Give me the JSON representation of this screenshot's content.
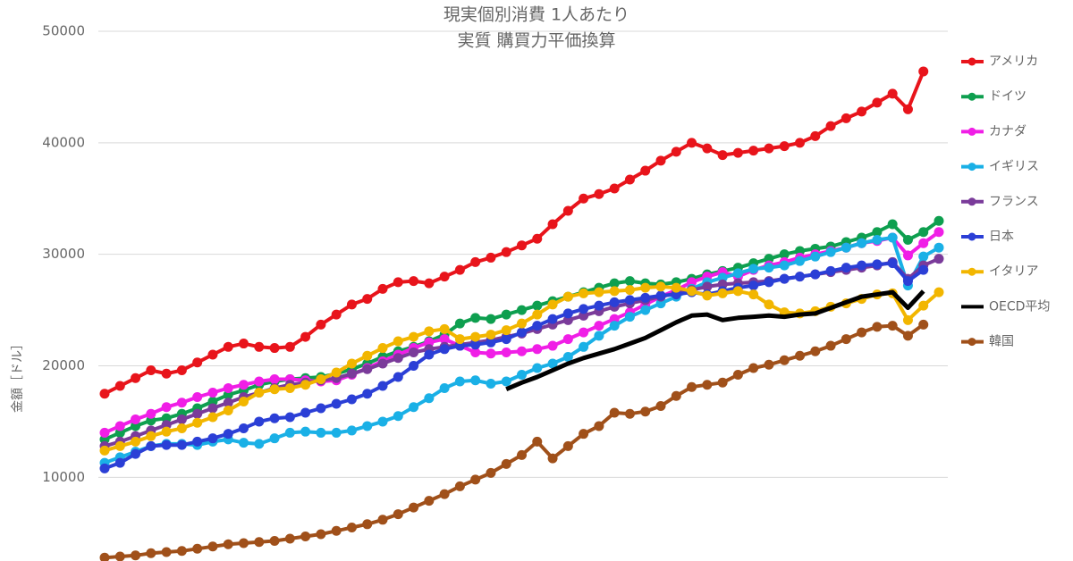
{
  "chart_data": {
    "type": "line",
    "title": [
      "現実個別消費 1人あたり",
      "実質 購買力平価換算"
    ],
    "y_label": "金額［ドル］",
    "categories": [
      null,
      null,
      null,
      null,
      null,
      null,
      null,
      null,
      null,
      null,
      null,
      null,
      null,
      null,
      null,
      null,
      null,
      null,
      null,
      null,
      null,
      null,
      null,
      null,
      null,
      null,
      null,
      null,
      null,
      null,
      null,
      null,
      null,
      null,
      null,
      null,
      null,
      null,
      null,
      null,
      null,
      null,
      null,
      null,
      null,
      null,
      null,
      null,
      null,
      null,
      null,
      null,
      null,
      null,
      null
    ],
    "ylim": [
      2500,
      50000
    ],
    "yticks": [
      10000,
      20000,
      30000,
      40000,
      50000
    ],
    "grid": true,
    "legend": "right",
    "series": [
      {
        "name": "アメリカ",
        "color": "#e8141b",
        "markers": true,
        "values": [
          17500,
          18200,
          18900,
          19600,
          19300,
          19600,
          20300,
          21000,
          21700,
          22000,
          21700,
          21600,
          21700,
          22600,
          23700,
          24600,
          25500,
          26000,
          26900,
          27500,
          27600,
          27400,
          28000,
          28600,
          29300,
          29700,
          30200,
          30800,
          31400,
          32700,
          33900,
          35000,
          35400,
          35900,
          36700,
          37500,
          38400,
          39200,
          40000,
          39500,
          38900,
          39100,
          39300,
          39500,
          39700,
          40000,
          40600,
          41500,
          42200,
          42800,
          43600,
          44400,
          43000,
          46400,
          null
        ]
      },
      {
        "name": "ドイツ",
        "color": "#0e9f4f",
        "markers": true,
        "values": [
          13400,
          14000,
          14600,
          15100,
          15300,
          15700,
          16200,
          16800,
          17400,
          17800,
          18300,
          18600,
          18800,
          18900,
          19000,
          19300,
          19700,
          20200,
          20800,
          21300,
          21700,
          22200,
          22800,
          23800,
          24300,
          24200,
          24600,
          25000,
          25400,
          25800,
          26200,
          26600,
          27000,
          27400,
          27600,
          27400,
          27300,
          27500,
          27800,
          28200,
          28500,
          28800,
          29200,
          29600,
          30000,
          30300,
          30500,
          30700,
          31100,
          31500,
          32000,
          32700,
          31300,
          32000,
          33000
        ]
      },
      {
        "name": "カナダ",
        "color": "#f01ee6",
        "markers": true,
        "values": [
          14000,
          14600,
          15200,
          15700,
          16300,
          16700,
          17200,
          17600,
          18000,
          18300,
          18600,
          18800,
          18800,
          18700,
          18600,
          18700,
          19200,
          19800,
          20400,
          21000,
          21600,
          22100,
          22400,
          21800,
          21200,
          21100,
          21200,
          21300,
          21500,
          21800,
          22400,
          23000,
          23600,
          24200,
          24800,
          25500,
          26200,
          26800,
          27500,
          28000,
          28400,
          28000,
          28600,
          29000,
          29300,
          29700,
          30000,
          30300,
          30600,
          31000,
          31200,
          31500,
          29900,
          31000,
          32000
        ]
      },
      {
        "name": "イギリス",
        "color": "#1ab0e6",
        "markers": true,
        "values": [
          11300,
          11800,
          12300,
          12800,
          13000,
          13000,
          12900,
          13200,
          13400,
          13100,
          13000,
          13500,
          14000,
          14100,
          14000,
          14000,
          14200,
          14600,
          15000,
          15500,
          16300,
          17100,
          18000,
          18600,
          18700,
          18400,
          18600,
          19200,
          19800,
          20200,
          20800,
          21700,
          22700,
          23600,
          24400,
          25000,
          25600,
          26200,
          26900,
          27500,
          27900,
          28300,
          28700,
          28800,
          29000,
          29400,
          29800,
          30200,
          30600,
          31000,
          31300,
          31500,
          27200,
          29800,
          30600
        ]
      },
      {
        "name": "フランス",
        "color": "#7a3b9a",
        "markers": true,
        "values": [
          12800,
          13200,
          13700,
          14200,
          14700,
          15200,
          15700,
          16200,
          16700,
          17200,
          17600,
          18000,
          18300,
          18500,
          18700,
          18900,
          19300,
          19700,
          20200,
          20700,
          21200,
          21500,
          21700,
          21900,
          22100,
          22300,
          22600,
          22900,
          23300,
          23700,
          24100,
          24500,
          24900,
          25300,
          25600,
          25900,
          26200,
          26500,
          26800,
          27100,
          27300,
          27400,
          27500,
          27600,
          27800,
          28000,
          28200,
          28400,
          28600,
          28800,
          29000,
          29300,
          27800,
          29000,
          29600
        ]
      },
      {
        "name": "日本",
        "color": "#2b3fd6",
        "markers": true,
        "values": [
          10800,
          11300,
          12100,
          12800,
          12900,
          12900,
          13200,
          13500,
          13900,
          14400,
          15000,
          15300,
          15400,
          15800,
          16200,
          16600,
          17000,
          17500,
          18200,
          19000,
          20000,
          21000,
          21500,
          21800,
          21900,
          22100,
          22400,
          23000,
          23600,
          24200,
          24700,
          25100,
          25400,
          25700,
          25900,
          26100,
          26300,
          26400,
          26600,
          26400,
          26700,
          27000,
          27200,
          27500,
          27800,
          28000,
          28200,
          28500,
          28800,
          29000,
          29100,
          29200,
          27600,
          28600,
          null
        ]
      },
      {
        "name": "イタリア",
        "color": "#f2b600",
        "markers": true,
        "values": [
          12400,
          12800,
          13200,
          13700,
          14100,
          14400,
          14900,
          15400,
          16000,
          16800,
          17600,
          17900,
          18000,
          18300,
          18800,
          19400,
          20200,
          20900,
          21600,
          22200,
          22600,
          23100,
          23300,
          22400,
          22600,
          22800,
          23200,
          23800,
          24600,
          25500,
          26200,
          26500,
          26600,
          26700,
          26800,
          27000,
          27100,
          27000,
          26700,
          26300,
          26500,
          26700,
          26400,
          25500,
          24800,
          24700,
          24900,
          25300,
          25600,
          26000,
          26400,
          26500,
          24100,
          25400,
          26600
        ]
      },
      {
        "name": "OECD平均",
        "color": "#000000",
        "markers": false,
        "values": [
          null,
          null,
          null,
          null,
          null,
          null,
          null,
          null,
          null,
          null,
          null,
          null,
          null,
          null,
          null,
          null,
          null,
          null,
          null,
          null,
          null,
          null,
          null,
          null,
          null,
          null,
          17900,
          18500,
          19000,
          19600,
          20200,
          20700,
          21100,
          21500,
          22000,
          22500,
          23200,
          23900,
          24500,
          24600,
          24100,
          24300,
          24400,
          24500,
          24400,
          24600,
          24700,
          25200,
          25700,
          26200,
          26400,
          26600,
          25200,
          26700,
          null
        ]
      },
      {
        "name": "韓国",
        "color": "#a0501a",
        "markers": true,
        "values": [
          2800,
          2900,
          3000,
          3200,
          3300,
          3400,
          3600,
          3800,
          4000,
          4100,
          4200,
          4300,
          4500,
          4700,
          4900,
          5200,
          5500,
          5800,
          6200,
          6700,
          7300,
          7900,
          8500,
          9200,
          9800,
          10400,
          11200,
          12000,
          13200,
          11700,
          12800,
          13900,
          14600,
          15800,
          15700,
          15900,
          16400,
          17300,
          18100,
          18300,
          18500,
          19200,
          19800,
          20100,
          20500,
          20900,
          21300,
          21800,
          22400,
          23000,
          23500,
          23600,
          22700,
          23700,
          null
        ]
      }
    ]
  }
}
